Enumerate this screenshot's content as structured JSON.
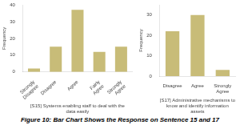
{
  "title": "Figure 10: Bar Chart Shows the Response on Sentence 15 and 17",
  "chart_data": [
    {
      "type": "bar",
      "categories": [
        "Strongly Disagree",
        "Disagree",
        "Agree",
        "Fairly Agree",
        "Strongly Agree"
      ],
      "values": [
        2,
        15,
        37,
        12,
        15
      ],
      "color": "#c8bc78",
      "xlabel": "[S15] Systems enabling staff to deal with the data easily",
      "ylabel": "Frequency",
      "ylim": [
        0,
        40
      ],
      "yticks": [
        0,
        10,
        20,
        30,
        40
      ],
      "grid": false
    },
    {
      "type": "bar",
      "categories": [
        "Disagree",
        "Agree",
        "Strongly Agree"
      ],
      "values": [
        22,
        30,
        3
      ],
      "color": "#c8bc78",
      "xlabel": "[S17] Administrative mechanisms to know and identify information assets",
      "ylabel": "Frequency",
      "ylim": [
        0,
        35
      ],
      "yticks": [
        0,
        10,
        20,
        30
      ],
      "grid": false
    }
  ]
}
